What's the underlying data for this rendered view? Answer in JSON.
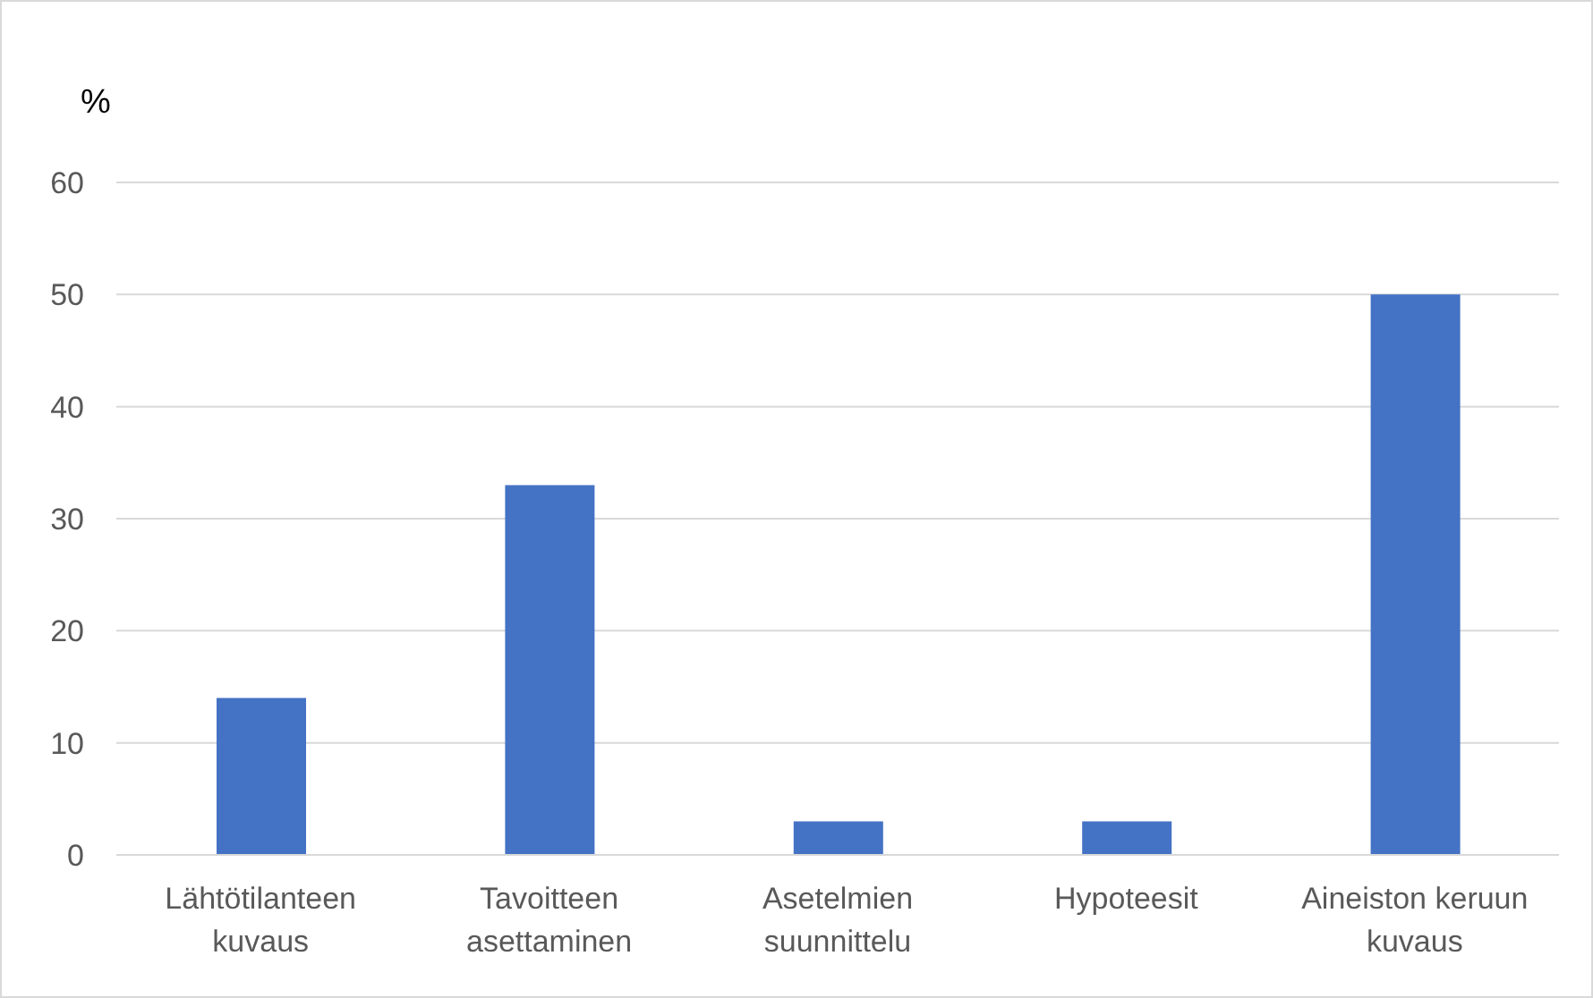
{
  "chart_data": {
    "type": "bar",
    "ylabel": "%",
    "categories": [
      "Lähtötilanteen kuvaus",
      "Tavoitteen asettaminen",
      "Asetelmien suunnittelu",
      "Hypoteesit",
      "Aineiston keruun kuvaus"
    ],
    "values": [
      14,
      33,
      3,
      3,
      50
    ],
    "color": "#4472c4",
    "ylim": [
      0,
      60
    ],
    "yticks": [
      0,
      10,
      20,
      30,
      40,
      50,
      60
    ],
    "grid": "y",
    "legend": false
  }
}
